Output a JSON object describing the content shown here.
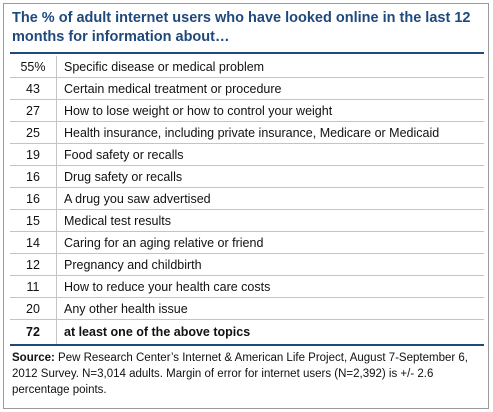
{
  "chart_data": {
    "type": "table",
    "title": "The % of adult internet users who have looked online in the last 12 months for information about…",
    "rows": [
      {
        "value": "55%",
        "topic": "Specific disease or medical problem"
      },
      {
        "value": "43",
        "topic": "Certain medical treatment or procedure"
      },
      {
        "value": "27",
        "topic": "How to lose weight or how to control your weight"
      },
      {
        "value": "25",
        "topic": "Health insurance, including private insurance, Medicare or Medicaid"
      },
      {
        "value": "19",
        "topic": "Food safety or recalls"
      },
      {
        "value": "16",
        "topic": "Drug safety or recalls"
      },
      {
        "value": "16",
        "topic": "A drug you saw advertised"
      },
      {
        "value": "15",
        "topic": "Medical test results"
      },
      {
        "value": "14",
        "topic": "Caring for an aging relative or friend"
      },
      {
        "value": "12",
        "topic": "Pregnancy and childbirth"
      },
      {
        "value": "11",
        "topic": "How to reduce your health care costs"
      },
      {
        "value": "20",
        "topic": "Any other health issue"
      }
    ],
    "total": {
      "value": "72",
      "topic": "at least one of the above topics"
    },
    "source_label": "Source:",
    "source_text": " Pew Research Center’s Internet & American Life Project, August 7-September 6, 2012 Survey. N=3,014 adults.  Margin of error for internet users (N=2,392) is +/- 2.6 percentage points."
  }
}
